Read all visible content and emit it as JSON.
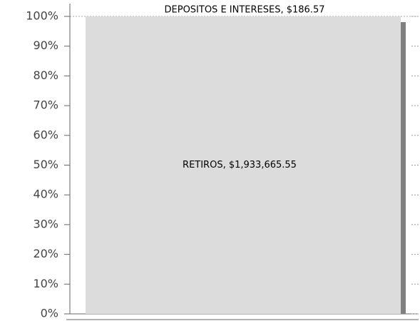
{
  "chart_data": {
    "type": "stacked_percent_bar",
    "categories": [
      null
    ],
    "series": [
      {
        "color": "#dcdcdc",
        "values": [
          1933665.55
        ],
        "value_labels": [
          "RETIROS, $1,933,665.55"
        ]
      },
      {
        "color": "#c8c8c8",
        "values": [
          186.57
        ],
        "value_labels": [
          "DEPOSITOS E INTERESES, $186.57"
        ]
      }
    ],
    "ylim": [
      0,
      100
    ],
    "yticks": [
      {
        "value": 0,
        "label": "0%"
      },
      {
        "value": 10,
        "label": "10%"
      },
      {
        "value": 20,
        "label": "20%"
      },
      {
        "value": 30,
        "label": "30%"
      },
      {
        "value": 40,
        "label": "40%"
      },
      {
        "value": 50,
        "label": "50%"
      },
      {
        "value": 60,
        "label": "60%"
      },
      {
        "value": 70,
        "label": "70%"
      },
      {
        "value": 80,
        "label": "80%"
      },
      {
        "value": 90,
        "label": "90%"
      },
      {
        "value": 100,
        "label": "100%"
      }
    ]
  }
}
